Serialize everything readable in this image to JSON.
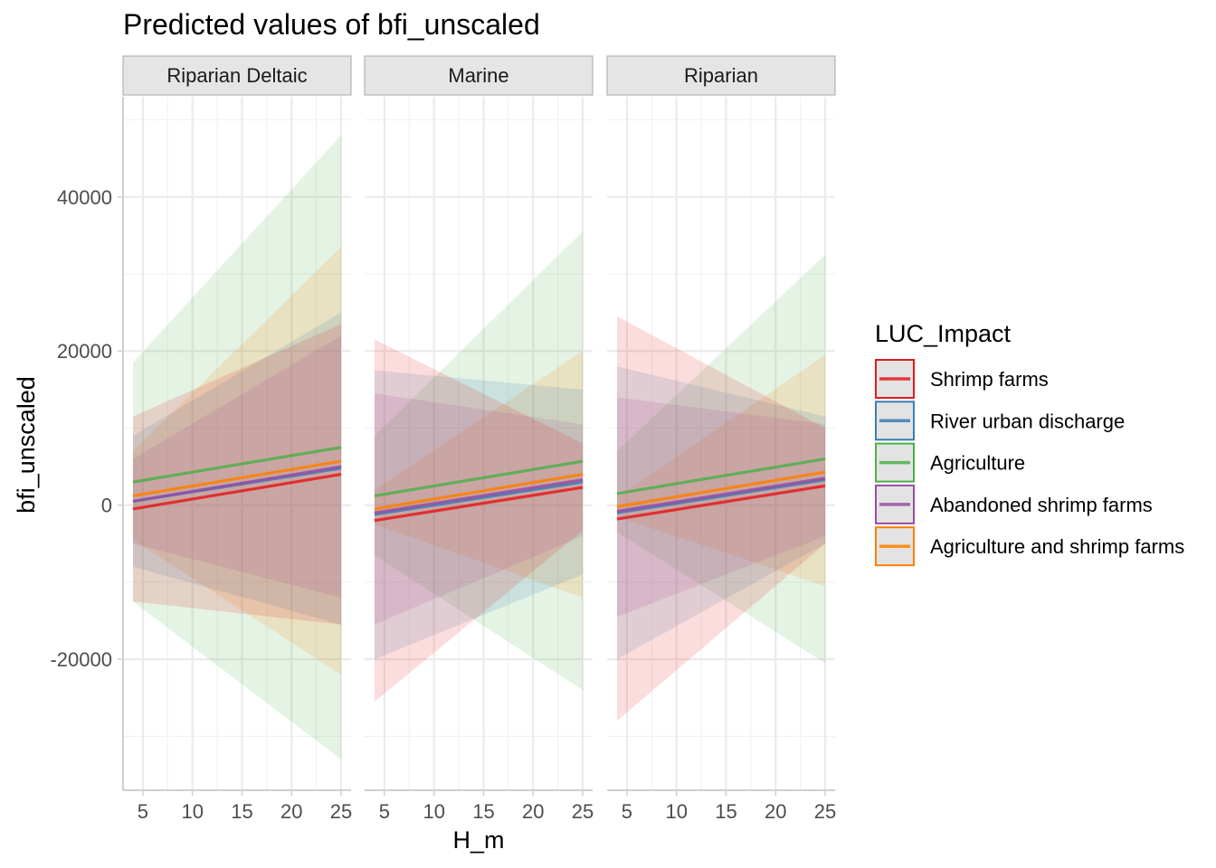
{
  "chart_data": {
    "type": "line",
    "title": "Predicted values of bfi_unscaled",
    "xlabel": "H_m",
    "ylabel": "bfi_unscaled",
    "x_ticks": [
      5,
      10,
      15,
      20,
      25
    ],
    "y_ticks": [
      40000,
      20000,
      0,
      -20000
    ],
    "xlim": [
      3,
      26
    ],
    "ylim": [
      -37000,
      53000
    ],
    "legend": {
      "title": "LUC_Impact",
      "position": "right"
    },
    "colors": {
      "Shrimp farms": "#E41A1C",
      "River urban discharge": "#377EB8",
      "Agriculture": "#4DAF4A",
      "Abandoned shrimp farms": "#984EA3",
      "Agriculture and shrimp farms": "#FF7F00"
    },
    "panels": [
      {
        "label": "Riparian Deltaic",
        "series": [
          {
            "name": "Shrimp farms",
            "x": [
              4,
              25
            ],
            "y": [
              -500,
              4000
            ],
            "ci_low": [
              -12500,
              -15500
            ],
            "ci_high": [
              11500,
              23500
            ]
          },
          {
            "name": "River urban discharge",
            "x": [
              4,
              25
            ],
            "y": [
              500,
              4800
            ],
            "ci_low": [
              -8000,
              -15500
            ],
            "ci_high": [
              9000,
              25000
            ]
          },
          {
            "name": "Agriculture",
            "x": [
              4,
              25
            ],
            "y": [
              3000,
              7500
            ],
            "ci_low": [
              -12500,
              -33000
            ],
            "ci_high": [
              18500,
              48000
            ]
          },
          {
            "name": "Abandoned shrimp farms",
            "x": [
              4,
              25
            ],
            "y": [
              500,
              5000
            ],
            "ci_low": [
              -5000,
              -12000
            ],
            "ci_high": [
              6000,
              22000
            ]
          },
          {
            "name": "Agriculture and shrimp farms",
            "x": [
              4,
              25
            ],
            "y": [
              1200,
              5700
            ],
            "ci_low": [
              -4500,
              -22000
            ],
            "ci_high": [
              7000,
              33500
            ]
          }
        ]
      },
      {
        "label": "Marine",
        "series": [
          {
            "name": "Shrimp farms",
            "x": [
              4,
              25
            ],
            "y": [
              -2000,
              2300
            ],
            "ci_low": [
              -25500,
              -3300
            ],
            "ci_high": [
              21500,
              8000
            ]
          },
          {
            "name": "River urban discharge",
            "x": [
              4,
              25
            ],
            "y": [
              -1200,
              3000
            ],
            "ci_low": [
              -20000,
              -9000
            ],
            "ci_high": [
              17500,
              15000
            ]
          },
          {
            "name": "Agriculture",
            "x": [
              4,
              25
            ],
            "y": [
              1200,
              5700
            ],
            "ci_low": [
              -6500,
              -24000
            ],
            "ci_high": [
              9000,
              35500
            ]
          },
          {
            "name": "Abandoned shrimp farms",
            "x": [
              4,
              25
            ],
            "y": [
              -1000,
              3300
            ],
            "ci_low": [
              -15500,
              -4000
            ],
            "ci_high": [
              14500,
              10500
            ]
          },
          {
            "name": "Agriculture and shrimp farms",
            "x": [
              4,
              25
            ],
            "y": [
              -500,
              4000
            ],
            "ci_low": [
              -2500,
              -12000
            ],
            "ci_high": [
              2000,
              20000
            ]
          }
        ]
      },
      {
        "label": "Riparian",
        "series": [
          {
            "name": "Shrimp farms",
            "x": [
              4,
              25
            ],
            "y": [
              -1800,
              2500
            ],
            "ci_low": [
              -28000,
              -5000
            ],
            "ci_high": [
              24500,
              10000
            ]
          },
          {
            "name": "River urban discharge",
            "x": [
              4,
              25
            ],
            "y": [
              -1000,
              3300
            ],
            "ci_low": [
              -20000,
              -5000
            ],
            "ci_high": [
              18000,
              11500
            ]
          },
          {
            "name": "Agriculture",
            "x": [
              4,
              25
            ],
            "y": [
              1500,
              6000
            ],
            "ci_low": [
              -3500,
              -20500
            ],
            "ci_high": [
              7000,
              32500
            ]
          },
          {
            "name": "Abandoned shrimp farms",
            "x": [
              4,
              25
            ],
            "y": [
              -800,
              3500
            ],
            "ci_low": [
              -14500,
              -4000
            ],
            "ci_high": [
              14000,
              10500
            ]
          },
          {
            "name": "Agriculture and shrimp farms",
            "x": [
              4,
              25
            ],
            "y": [
              -200,
              4300
            ],
            "ci_low": [
              -1500,
              -10500
            ],
            "ci_high": [
              1000,
              19500
            ]
          }
        ]
      }
    ]
  }
}
